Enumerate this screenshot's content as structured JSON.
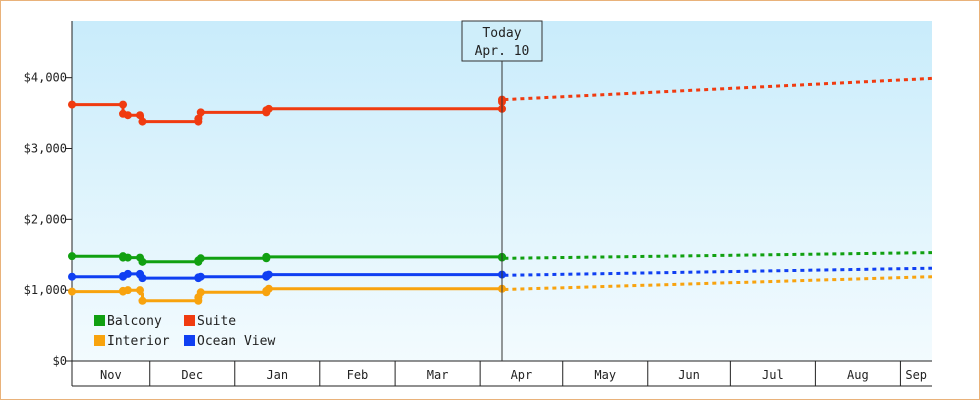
{
  "chart_data": {
    "type": "line",
    "y_unit": "USD",
    "ylim": [
      0,
      4800
    ],
    "y_ticks": [
      {
        "value": 0,
        "label": "$0"
      },
      {
        "value": 1000,
        "label": "$1,000"
      },
      {
        "value": 2000,
        "label": "$2,000"
      },
      {
        "value": 3000,
        "label": "$3,000"
      },
      {
        "value": 4000,
        "label": "$4,000"
      }
    ],
    "x_range_days": [
      -30,
      324
    ],
    "x_ticks": [
      {
        "label": "Nov",
        "start": -30,
        "end": 2
      },
      {
        "label": "Dec",
        "start": 2,
        "end": 37
      },
      {
        "label": "Jan",
        "start": 37,
        "end": 72
      },
      {
        "label": "Feb",
        "start": 72,
        "end": 103
      },
      {
        "label": "Mar",
        "start": 103,
        "end": 138
      },
      {
        "label": "Apr",
        "start": 138,
        "end": 172
      },
      {
        "label": "May",
        "start": 172,
        "end": 207
      },
      {
        "label": "Jun",
        "start": 207,
        "end": 241
      },
      {
        "label": "Jul",
        "start": 241,
        "end": 276
      },
      {
        "label": "Aug",
        "start": 276,
        "end": 311
      },
      {
        "label": "Sep",
        "start": 311,
        "end": 324
      }
    ],
    "today": {
      "line1": "Today",
      "line2": "Apr. 10",
      "x": 147
    },
    "grid": false,
    "legend_position": "bottom-left",
    "series": [
      {
        "name": "Balcony",
        "color": "#11a011",
        "history": [
          [
            -30,
            1480
          ],
          [
            -9,
            1480
          ],
          [
            -9,
            1460
          ],
          [
            -7,
            1460
          ],
          [
            -7,
            1460
          ],
          [
            -2,
            1460
          ],
          [
            -2,
            1430
          ],
          [
            -1,
            1430
          ],
          [
            -1,
            1400
          ],
          [
            22,
            1400
          ],
          [
            22,
            1420
          ],
          [
            23,
            1420
          ],
          [
            23,
            1450
          ],
          [
            50,
            1450
          ],
          [
            50,
            1470
          ],
          [
            147,
            1470
          ],
          [
            147,
            1460
          ]
        ],
        "markers": [
          [
            -30,
            1480
          ],
          [
            -9,
            1480
          ],
          [
            -9,
            1460
          ],
          [
            -7,
            1460
          ],
          [
            -2,
            1460
          ],
          [
            -1,
            1400
          ],
          [
            22,
            1400
          ],
          [
            22,
            1420
          ],
          [
            23,
            1450
          ],
          [
            50,
            1450
          ],
          [
            50,
            1470
          ],
          [
            147,
            1470
          ],
          [
            147,
            1460
          ]
        ],
        "forecast": [
          [
            148,
            1450
          ],
          [
            324,
            1530
          ]
        ]
      },
      {
        "name": "Suite",
        "color": "#f03b10",
        "history": [
          [
            -30,
            3620
          ],
          [
            -9,
            3620
          ],
          [
            -9,
            3490
          ],
          [
            -7,
            3490
          ],
          [
            -7,
            3470
          ],
          [
            -2,
            3470
          ],
          [
            -2,
            3450
          ],
          [
            -1,
            3450
          ],
          [
            -1,
            3380
          ],
          [
            22,
            3380
          ],
          [
            22,
            3420
          ],
          [
            23,
            3420
          ],
          [
            23,
            3510
          ],
          [
            50,
            3510
          ],
          [
            50,
            3540
          ],
          [
            51,
            3540
          ],
          [
            51,
            3560
          ],
          [
            147,
            3560
          ],
          [
            147,
            3690
          ]
        ],
        "markers": [
          [
            -30,
            3620
          ],
          [
            -9,
            3620
          ],
          [
            -9,
            3490
          ],
          [
            -7,
            3470
          ],
          [
            -2,
            3470
          ],
          [
            -1,
            3380
          ],
          [
            22,
            3380
          ],
          [
            22,
            3420
          ],
          [
            23,
            3510
          ],
          [
            50,
            3510
          ],
          [
            50,
            3540
          ],
          [
            51,
            3560
          ],
          [
            147,
            3560
          ],
          [
            147,
            3660
          ],
          [
            147,
            3690
          ]
        ],
        "forecast": [
          [
            148,
            3690
          ],
          [
            324,
            3990
          ]
        ]
      },
      {
        "name": "Interior",
        "color": "#f8a30e",
        "history": [
          [
            -30,
            980
          ],
          [
            -9,
            980
          ],
          [
            -9,
            990
          ],
          [
            -7,
            990
          ],
          [
            -7,
            1000
          ],
          [
            -2,
            1000
          ],
          [
            -2,
            950
          ],
          [
            -1,
            950
          ],
          [
            -1,
            850
          ],
          [
            22,
            850
          ],
          [
            22,
            900
          ],
          [
            23,
            900
          ],
          [
            23,
            970
          ],
          [
            50,
            970
          ],
          [
            50,
            990
          ],
          [
            51,
            990
          ],
          [
            51,
            1020
          ],
          [
            147,
            1020
          ]
        ],
        "markers": [
          [
            -30,
            980
          ],
          [
            -9,
            980
          ],
          [
            -9,
            990
          ],
          [
            -7,
            1000
          ],
          [
            -2,
            1000
          ],
          [
            -1,
            850
          ],
          [
            22,
            850
          ],
          [
            22,
            900
          ],
          [
            23,
            970
          ],
          [
            50,
            970
          ],
          [
            50,
            990
          ],
          [
            51,
            1020
          ],
          [
            147,
            1020
          ]
        ],
        "forecast": [
          [
            148,
            1010
          ],
          [
            324,
            1190
          ]
        ]
      },
      {
        "name": "Ocean View",
        "color": "#0f3ff2",
        "history": [
          [
            -30,
            1190
          ],
          [
            -9,
            1190
          ],
          [
            -9,
            1200
          ],
          [
            -7,
            1200
          ],
          [
            -7,
            1230
          ],
          [
            -2,
            1230
          ],
          [
            -2,
            1220
          ],
          [
            -1,
            1220
          ],
          [
            -1,
            1170
          ],
          [
            22,
            1170
          ],
          [
            22,
            1180
          ],
          [
            23,
            1180
          ],
          [
            23,
            1190
          ],
          [
            50,
            1190
          ],
          [
            50,
            1210
          ],
          [
            51,
            1210
          ],
          [
            51,
            1220
          ],
          [
            147,
            1220
          ]
        ],
        "markers": [
          [
            -30,
            1190
          ],
          [
            -9,
            1190
          ],
          [
            -9,
            1200
          ],
          [
            -7,
            1230
          ],
          [
            -2,
            1230
          ],
          [
            -2,
            1220
          ],
          [
            -1,
            1170
          ],
          [
            22,
            1170
          ],
          [
            22,
            1180
          ],
          [
            23,
            1190
          ],
          [
            50,
            1190
          ],
          [
            50,
            1210
          ],
          [
            51,
            1220
          ],
          [
            147,
            1220
          ]
        ],
        "forecast": [
          [
            148,
            1210
          ],
          [
            324,
            1310
          ]
        ]
      }
    ],
    "legend": [
      {
        "name": "Balcony",
        "color": "#11a011"
      },
      {
        "name": "Suite",
        "color": "#f03b10"
      },
      {
        "name": "Interior",
        "color": "#f8a30e"
      },
      {
        "name": "Ocean View",
        "color": "#0f3ff2"
      }
    ]
  }
}
